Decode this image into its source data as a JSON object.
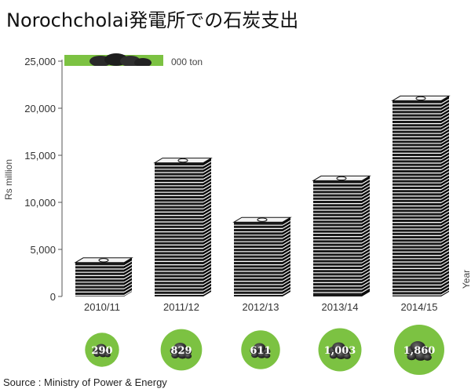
{
  "chart_data": {
    "type": "bar",
    "title": "Norochcholai発電所での石炭支出",
    "categories": [
      "2010/11",
      "2011/12",
      "2012/13",
      "2013/14",
      "2014/15"
    ],
    "series": [
      {
        "name": "Rs million",
        "values": [
          3600,
          14200,
          7900,
          12300,
          20800
        ]
      },
      {
        "name": "000 ton",
        "values": [
          290,
          829,
          611,
          1003,
          1860
        ]
      }
    ],
    "value_labels": [
      "290",
      "829",
      "611",
      "1,003",
      "1,860"
    ],
    "ylabel": "Rs million",
    "xlabel": "Year",
    "ylim": [
      0,
      25000
    ],
    "yticks": [
      0,
      5000,
      10000,
      15000,
      20000,
      25000
    ],
    "ytick_labels": [
      "0",
      "5,000",
      "10,000",
      "15,000",
      "20,000",
      "25,000"
    ],
    "legend": {
      "label": "000 ton",
      "position": "top-left"
    },
    "source": "Source : Ministry of Power & Energy",
    "colors": {
      "bar": "#1a1a1a",
      "paper": "#ffffff",
      "green": "#7cc242",
      "coal": "#2e2e2e",
      "note": "#f4f4f4"
    }
  }
}
